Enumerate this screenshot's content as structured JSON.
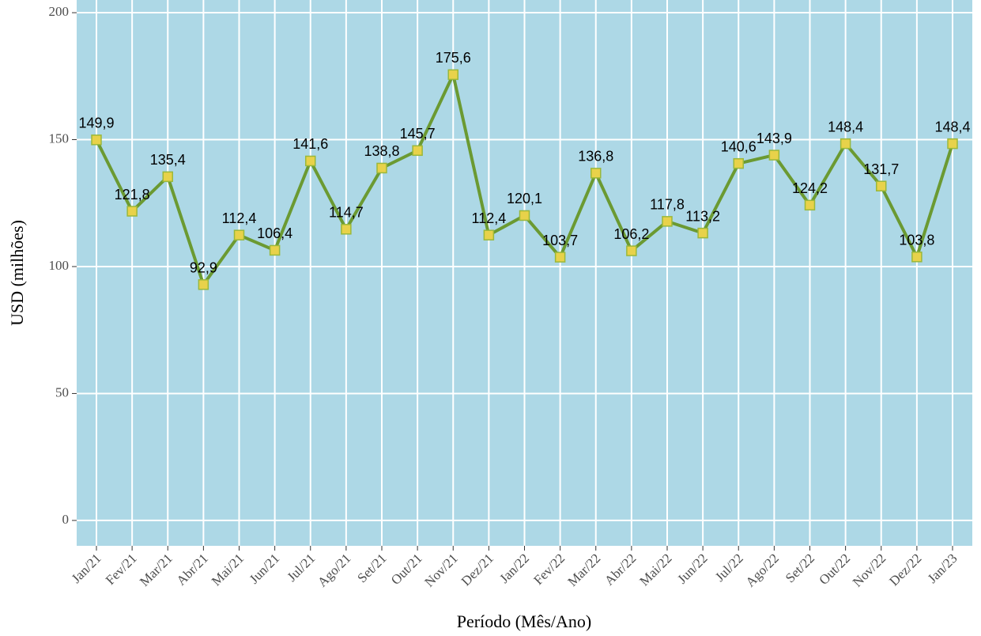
{
  "chart_data": {
    "type": "line",
    "x_label": "Período (Mês/Ano)",
    "y_label": "USD (milhões)",
    "categories": [
      "Jan/21",
      "Fev/21",
      "Mar/21",
      "Abr/21",
      "Mai/21",
      "Jun/21",
      "Jul/21",
      "Ago/21",
      "Set/21",
      "Out/21",
      "Nov/21",
      "Dez/21",
      "Jan/22",
      "Fev/22",
      "Mar/22",
      "Abr/22",
      "Mai/22",
      "Jun/22",
      "Jul/22",
      "Ago/22",
      "Set/22",
      "Out/22",
      "Nov/22",
      "Dez/22",
      "Jan/23"
    ],
    "values": [
      149.9,
      121.8,
      135.4,
      92.9,
      112.4,
      106.4,
      141.6,
      114.7,
      138.8,
      145.7,
      175.6,
      112.4,
      120.1,
      103.7,
      136.8,
      106.2,
      117.8,
      113.2,
      140.6,
      143.9,
      124.2,
      148.4,
      131.7,
      103.8,
      148.4
    ],
    "value_labels": [
      "149,9",
      "121,8",
      "135,4",
      "92,9",
      "112,4",
      "106,4",
      "141,6",
      "114,7",
      "138,8",
      "145,7",
      "175,6",
      "112,4",
      "120,1",
      "103,7",
      "136,8",
      "106,2",
      "117,8",
      "113,2",
      "140,6",
      "143,9",
      "124,2",
      "148,4",
      "131,7",
      "103,8",
      "148,4"
    ],
    "color": "#6b9a32",
    "marker_color": "#e8d24a",
    "background": "#add8e6",
    "ylim": [
      -10,
      205
    ],
    "yticks": [
      0,
      50,
      100,
      150,
      200
    ],
    "grid": true
  }
}
